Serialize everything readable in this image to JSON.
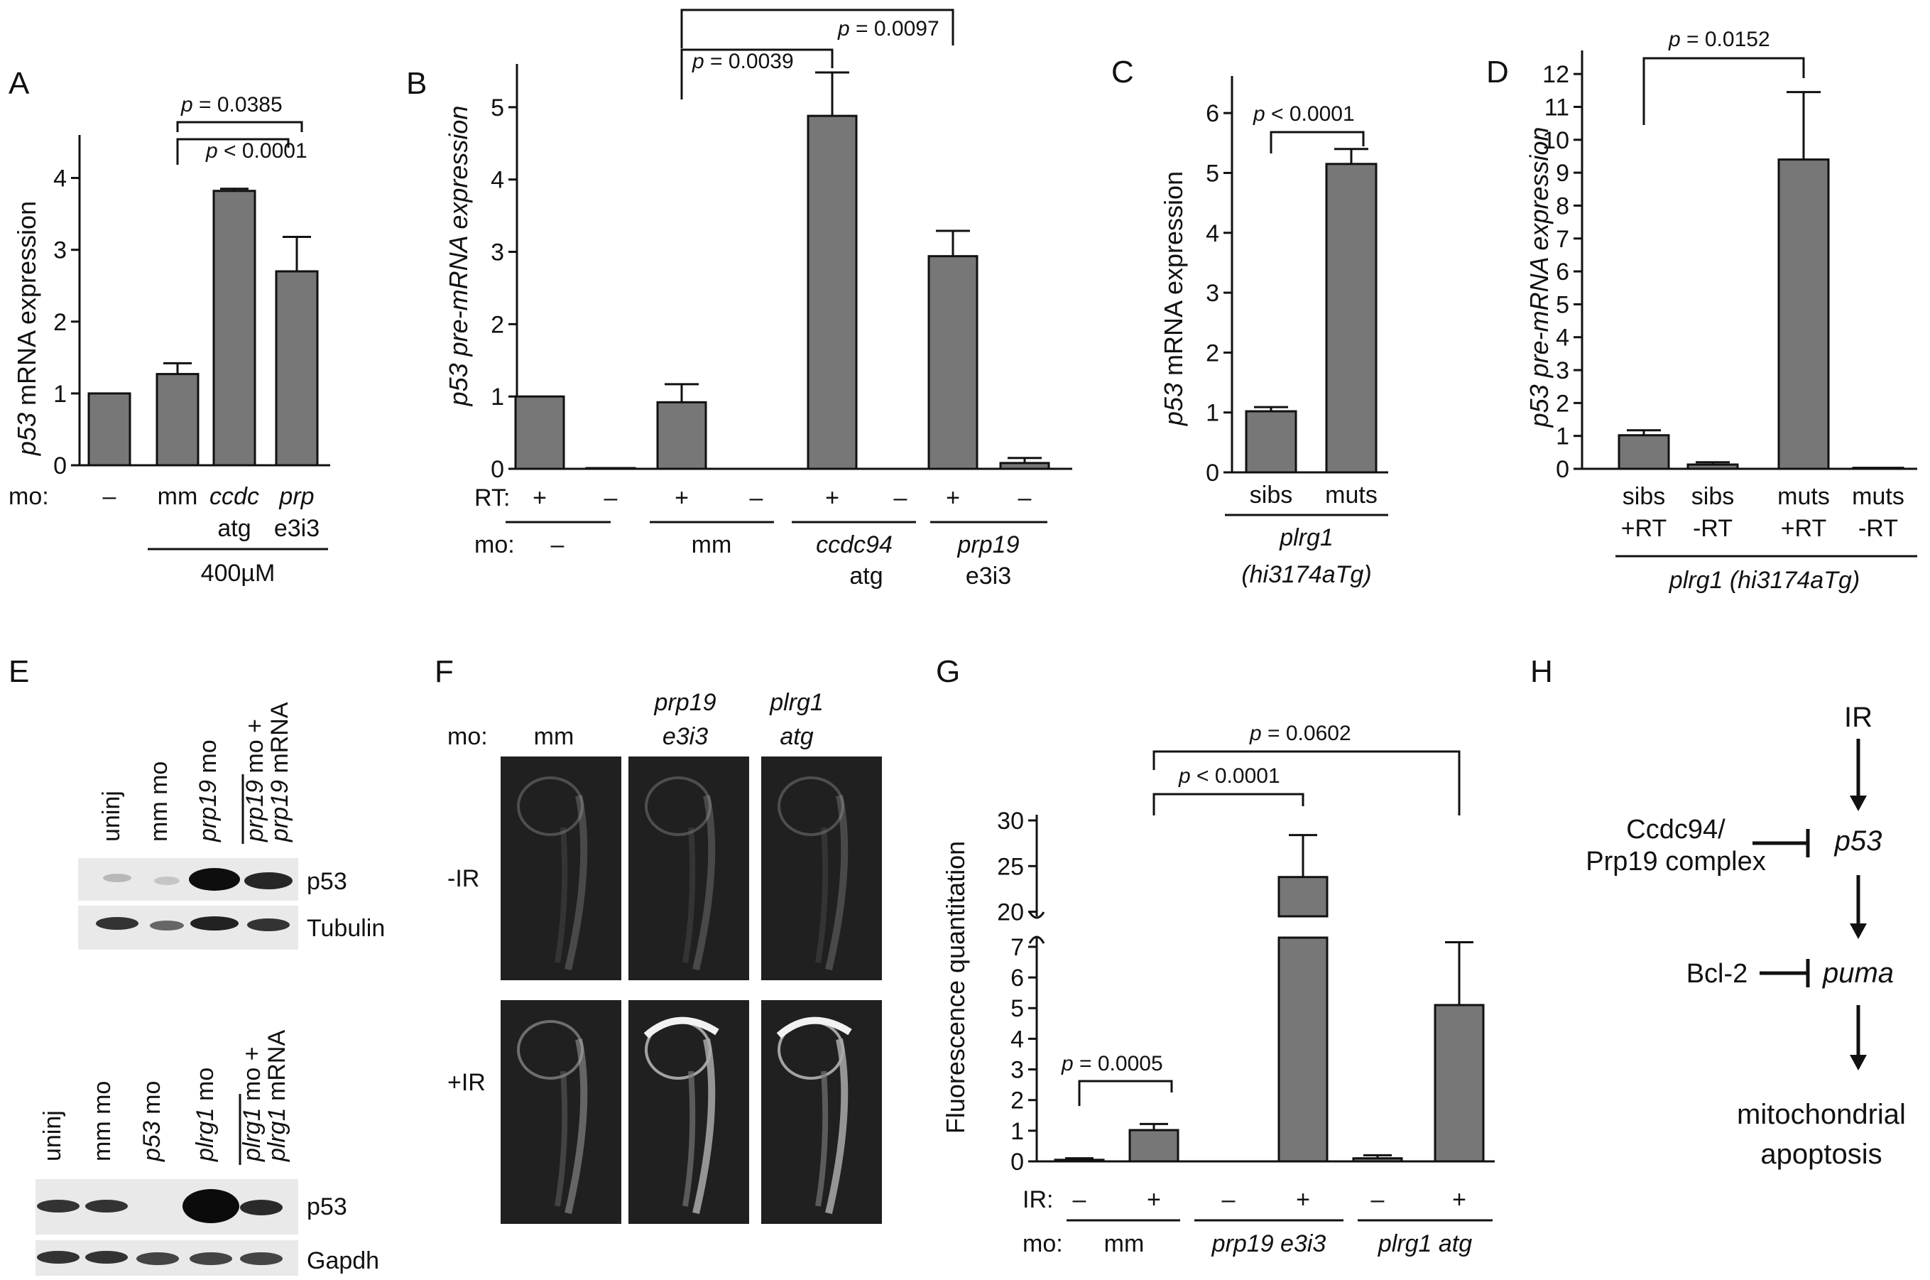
{
  "colors": {
    "bar": "#777777",
    "ink": "#111111",
    "blot_bg": "#e9e9e9",
    "embryo_bg": "#202020"
  },
  "panels": {
    "A": {
      "letter": "A",
      "ylabel_italic": "p53",
      "ylabel_rest": " mRNA expression",
      "mo_label": "mo:",
      "group_label": "400µM",
      "pvals": [
        {
          "text": "p < 0.0001",
          "p": "p",
          "rest": " < 0.0001"
        },
        {
          "text": "p = 0.0385",
          "p": "p",
          "rest": " = 0.0385"
        }
      ],
      "categories": [
        {
          "l1": "–",
          "l2": "",
          "italic": false
        },
        {
          "l1": "mm",
          "l2": "",
          "italic": false
        },
        {
          "l1": "ccdc",
          "l2": "atg",
          "italic": true
        },
        {
          "l1": "prp",
          "l2": "e3i3",
          "italic": true
        }
      ]
    },
    "B": {
      "letter": "B",
      "ylabel_italic": "p53 pre-mRNA expression",
      "rt_label": "RT:",
      "mo_label": "mo:",
      "rt_signs": [
        "+",
        "–",
        "+",
        "–",
        "+",
        "–",
        "+",
        "–"
      ],
      "groups": [
        {
          "l1": "–",
          "l2": "",
          "italic": false
        },
        {
          "l1": "mm",
          "l2": "",
          "italic": false
        },
        {
          "l1": "ccdc94",
          "l2": "atg",
          "italic": true
        },
        {
          "l1": "prp19",
          "l2": "e3i3",
          "italic": true
        }
      ],
      "pvals": [
        {
          "p": "p",
          "rest": " = 0.0039"
        },
        {
          "p": "p",
          "rest": " = 0.0097"
        }
      ]
    },
    "C": {
      "letter": "C",
      "ylabel_italic": "p53",
      "ylabel_rest": " mRNA expression",
      "categories": [
        "sibs",
        "muts"
      ],
      "group_l1": "plrg1",
      "group_l2": "(hi3174aTg)",
      "pval": {
        "p": "p",
        "rest": " < 0.0001"
      }
    },
    "D": {
      "letter": "D",
      "ylabel_italic": "p53 pre-mRNA expression",
      "categories": [
        {
          "l1": "sibs",
          "l2": "+RT"
        },
        {
          "l1": "sibs",
          "l2": "-RT"
        },
        {
          "l1": "muts",
          "l2": "+RT"
        },
        {
          "l1": "muts",
          "l2": "-RT"
        }
      ],
      "group_label": "plrg1 (hi3174aTg)",
      "pval": {
        "p": "p",
        "rest": " = 0.0152"
      }
    },
    "E": {
      "letter": "E",
      "blot1": {
        "lanes": [
          {
            "text": "uninj",
            "italic_part": "",
            "rest": "uninj"
          },
          {
            "text": "mm mo",
            "italic_part": "",
            "rest": "mm mo"
          },
          {
            "text": "prp19 mo",
            "italic_part": "prp19",
            "rest": " mo"
          },
          {
            "text": "prp19 mo + prp19 mRNA",
            "l1i": "prp19",
            "l1r": " mo +",
            "l2i": "prp19",
            "l2r": " mRNA"
          }
        ],
        "bands": [
          "p53",
          "Tubulin"
        ]
      },
      "blot2": {
        "lanes": [
          {
            "italic_part": "",
            "rest": "uninj"
          },
          {
            "italic_part": "",
            "rest": "mm mo"
          },
          {
            "italic_part": "p53",
            "rest": " mo"
          },
          {
            "italic_part": "plrg1",
            "rest": " mo"
          },
          {
            "l1i": "plrg1",
            "l1r": " mo +",
            "l2i": "plrg1",
            "l2r": " mRNA"
          }
        ],
        "bands": [
          "p53",
          "Gapdh"
        ]
      }
    },
    "F": {
      "letter": "F",
      "mo_label": "mo:",
      "columns": [
        {
          "l1": "mm",
          "l2": "",
          "italic": false
        },
        {
          "l1": "prp19",
          "l2": "e3i3",
          "italic": true
        },
        {
          "l1": "plrg1",
          "l2": "atg",
          "italic": true
        }
      ],
      "rows": [
        "-IR",
        "+IR"
      ]
    },
    "G": {
      "letter": "G",
      "ylabel": "Fluorescence quantitation",
      "ir_label": "IR:",
      "mo_label": "mo:",
      "ir_signs": [
        "–",
        "+",
        "–",
        "+",
        "–",
        "+"
      ],
      "groups": [
        {
          "text": "mm",
          "italic": false
        },
        {
          "text": "prp19 e3i3",
          "italic": true
        },
        {
          "text": "plrg1 atg",
          "italic": true
        }
      ],
      "pvals": [
        {
          "p": "p",
          "rest": " = 0.0005"
        },
        {
          "p": "p",
          "rest": " < 0.0001"
        },
        {
          "p": "p",
          "rest": " = 0.0602"
        }
      ]
    },
    "H": {
      "letter": "H",
      "nodes": {
        "ir": "IR",
        "p53": "p53",
        "complex_l1": "Ccdc94/",
        "complex_l2": "Prp19 complex",
        "bcl2": "Bcl-2",
        "puma": "puma",
        "out_l1": "mitochondrial",
        "out_l2": "apoptosis"
      }
    }
  },
  "chart_data": [
    {
      "panel": "A",
      "type": "bar",
      "categories": [
        "–",
        "mm",
        "ccdc atg",
        "prp e3i3"
      ],
      "values": [
        1.0,
        1.27,
        3.82,
        2.7
      ],
      "errors": [
        0,
        0.15,
        0.03,
        0.48
      ],
      "ylim": [
        0,
        4.5
      ],
      "yticks": [
        0,
        1,
        2,
        3,
        4
      ],
      "ylabel": "p53 mRNA expression"
    },
    {
      "panel": "B",
      "type": "bar",
      "categories": [
        "+",
        "–",
        "+",
        "–",
        "+",
        "–",
        "+",
        "–"
      ],
      "values": [
        1.0,
        0.01,
        0.92,
        0.0,
        4.88,
        0.0,
        2.94,
        0.08
      ],
      "errors": [
        0,
        0,
        0.25,
        0,
        0.6,
        0,
        0.35,
        0.07
      ],
      "ylim": [
        0,
        5.5
      ],
      "yticks": [
        0,
        1,
        2,
        3,
        4,
        5
      ],
      "ylabel": "p53 pre-mRNA expression"
    },
    {
      "panel": "C",
      "type": "bar",
      "categories": [
        "sibs",
        "muts"
      ],
      "values": [
        1.02,
        5.15
      ],
      "errors": [
        0.07,
        0.25
      ],
      "ylim": [
        0,
        6.5
      ],
      "yticks": [
        0,
        1,
        2,
        3,
        4,
        5,
        6
      ],
      "ylabel": "p53 mRNA expression"
    },
    {
      "panel": "D",
      "type": "bar",
      "categories": [
        "sibs +RT",
        "sibs -RT",
        "muts +RT",
        "muts -RT"
      ],
      "values": [
        1.02,
        0.13,
        9.4,
        0.03
      ],
      "errors": [
        0.15,
        0.07,
        2.05,
        0.0
      ],
      "ylim": [
        0,
        12.5
      ],
      "yticks": [
        0,
        1,
        2,
        3,
        4,
        5,
        6,
        7,
        8,
        9,
        10,
        11,
        12
      ],
      "ylabel": "p53 pre-mRNA expression"
    },
    {
      "panel": "G",
      "type": "bar",
      "categories": [
        "–",
        "+",
        "–",
        "+",
        "–",
        "+"
      ],
      "values": [
        0.05,
        1.02,
        0.0,
        23.8,
        0.1,
        5.1
      ],
      "errors": [
        0.05,
        0.2,
        0.0,
        4.6,
        0.1,
        2.05
      ],
      "yticks_low": [
        0,
        1,
        2,
        3,
        4,
        5,
        6,
        7
      ],
      "yticks_high": [
        20,
        25,
        30
      ],
      "axis_break": [
        7.3,
        19.5
      ],
      "ylabel": "Fluorescence quantitation"
    }
  ]
}
